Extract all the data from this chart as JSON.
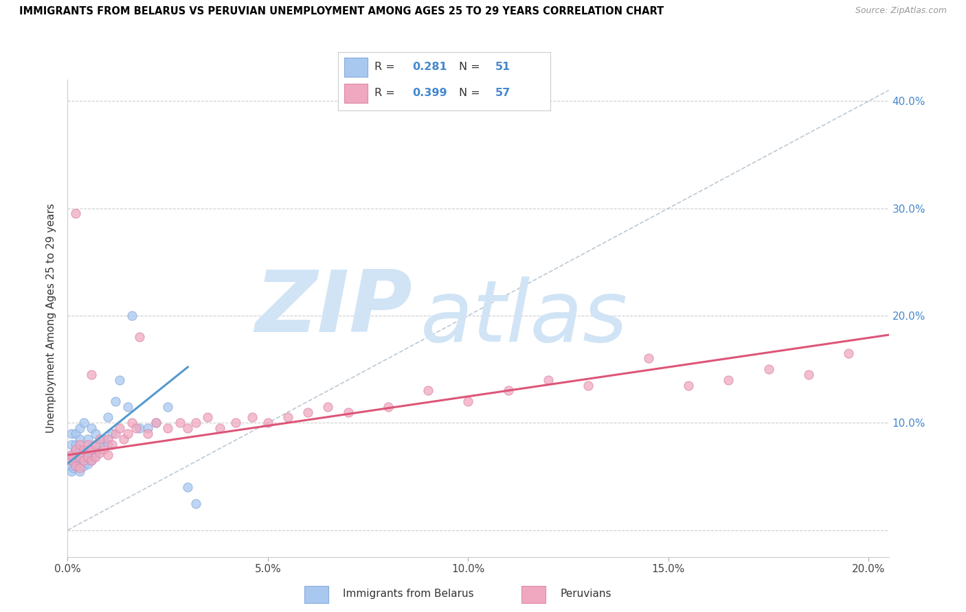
{
  "title": "IMMIGRANTS FROM BELARUS VS PERUVIAN UNEMPLOYMENT AMONG AGES 25 TO 29 YEARS CORRELATION CHART",
  "source": "Source: ZipAtlas.com",
  "ylabel": "Unemployment Among Ages 25 to 29 years",
  "xlim": [
    0.0,
    0.205
  ],
  "ylim": [
    -0.025,
    0.42
  ],
  "color_blue": "#a8c8f0",
  "color_blue_edge": "#88aadd",
  "color_pink": "#f0a8c0",
  "color_pink_edge": "#dd88aa",
  "color_blue_text": "#4488cc",
  "color_trendline_blue": "#5599cc",
  "color_trendline_pink": "#dd5577",
  "trendline_blue": {
    "x": [
      0.0,
      0.03
    ],
    "y": [
      0.062,
      0.152
    ]
  },
  "trendline_pink": {
    "x": [
      0.0,
      0.205
    ],
    "y": [
      0.07,
      0.182
    ]
  },
  "diagonal_line": {
    "x": [
      0.0,
      0.205
    ],
    "y": [
      0.0,
      0.41
    ]
  },
  "scatter_blue_x": [
    0.0005,
    0.001,
    0.001,
    0.001,
    0.001,
    0.001,
    0.0015,
    0.002,
    0.002,
    0.002,
    0.002,
    0.002,
    0.002,
    0.0025,
    0.003,
    0.003,
    0.003,
    0.003,
    0.003,
    0.003,
    0.0035,
    0.004,
    0.004,
    0.004,
    0.004,
    0.0045,
    0.005,
    0.005,
    0.005,
    0.005,
    0.006,
    0.006,
    0.006,
    0.007,
    0.007,
    0.007,
    0.008,
    0.009,
    0.01,
    0.01,
    0.011,
    0.012,
    0.013,
    0.015,
    0.016,
    0.018,
    0.02,
    0.022,
    0.025,
    0.03,
    0.032
  ],
  "scatter_blue_y": [
    0.06,
    0.055,
    0.065,
    0.07,
    0.08,
    0.09,
    0.058,
    0.06,
    0.065,
    0.07,
    0.075,
    0.08,
    0.09,
    0.062,
    0.055,
    0.06,
    0.065,
    0.075,
    0.085,
    0.095,
    0.068,
    0.06,
    0.065,
    0.07,
    0.1,
    0.072,
    0.062,
    0.068,
    0.075,
    0.085,
    0.065,
    0.07,
    0.095,
    0.07,
    0.075,
    0.09,
    0.08,
    0.085,
    0.08,
    0.105,
    0.09,
    0.12,
    0.14,
    0.115,
    0.2,
    0.095,
    0.095,
    0.1,
    0.115,
    0.04,
    0.025
  ],
  "scatter_pink_x": [
    0.001,
    0.001,
    0.002,
    0.002,
    0.003,
    0.003,
    0.003,
    0.004,
    0.004,
    0.005,
    0.005,
    0.006,
    0.006,
    0.007,
    0.007,
    0.008,
    0.008,
    0.009,
    0.01,
    0.01,
    0.011,
    0.012,
    0.013,
    0.014,
    0.015,
    0.016,
    0.017,
    0.018,
    0.02,
    0.022,
    0.025,
    0.028,
    0.03,
    0.032,
    0.035,
    0.038,
    0.042,
    0.046,
    0.05,
    0.055,
    0.06,
    0.065,
    0.07,
    0.08,
    0.09,
    0.1,
    0.11,
    0.12,
    0.13,
    0.145,
    0.155,
    0.165,
    0.175,
    0.185,
    0.195,
    0.002,
    0.006
  ],
  "scatter_pink_y": [
    0.065,
    0.07,
    0.06,
    0.075,
    0.058,
    0.068,
    0.08,
    0.065,
    0.075,
    0.068,
    0.08,
    0.065,
    0.075,
    0.068,
    0.08,
    0.072,
    0.085,
    0.075,
    0.07,
    0.085,
    0.08,
    0.09,
    0.095,
    0.085,
    0.09,
    0.1,
    0.095,
    0.18,
    0.09,
    0.1,
    0.095,
    0.1,
    0.095,
    0.1,
    0.105,
    0.095,
    0.1,
    0.105,
    0.1,
    0.105,
    0.11,
    0.115,
    0.11,
    0.115,
    0.13,
    0.12,
    0.13,
    0.14,
    0.135,
    0.16,
    0.135,
    0.14,
    0.15,
    0.145,
    0.165,
    0.295,
    0.145
  ],
  "watermark_zip": "ZIP",
  "watermark_atlas": "atlas",
  "watermark_color": "#d0e4f5",
  "grid_color": "#cccccc",
  "y_ticks": [
    0.0,
    0.1,
    0.2,
    0.3,
    0.4
  ],
  "x_ticks": [
    0.0,
    0.05,
    0.1,
    0.15,
    0.2
  ],
  "x_tick_labels": [
    "0.0%",
    "5.0%",
    "10.0%",
    "15.0%",
    "20.0%"
  ],
  "y_tick_labels_right": [
    "",
    "10.0%",
    "20.0%",
    "30.0%",
    "40.0%"
  ]
}
